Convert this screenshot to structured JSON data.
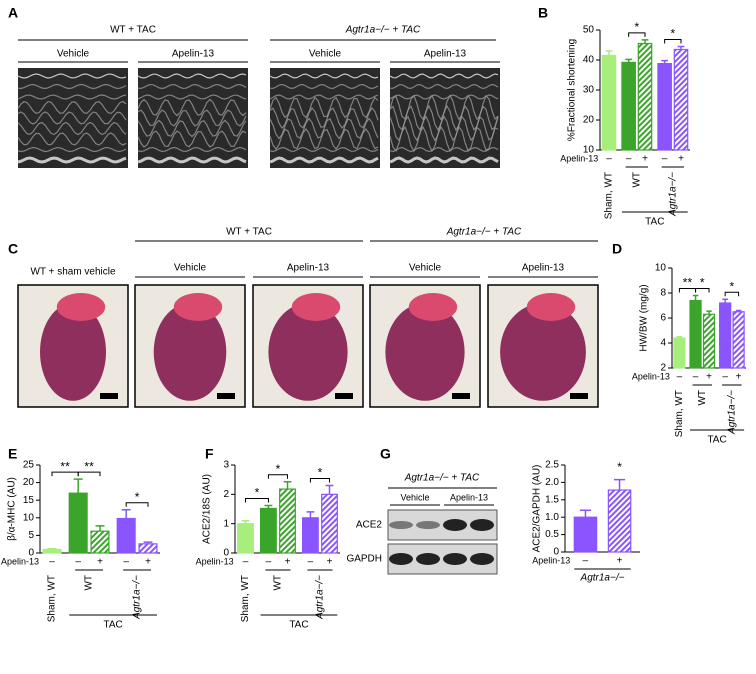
{
  "panels": {
    "A": {
      "label": "A",
      "groups": [
        {
          "title": "WT + TAC",
          "items": [
            "Vehicle",
            "Apelin-13"
          ]
        },
        {
          "title": "Agtr1a−/− + TAC",
          "items": [
            "Vehicle",
            "Apelin-13"
          ]
        }
      ]
    },
    "C": {
      "label": "C",
      "single": "WT + sham vehicle",
      "groups": [
        {
          "title": "WT + TAC",
          "items": [
            "Vehicle",
            "Apelin-13"
          ]
        },
        {
          "title": "Agtr1a−/− + TAC",
          "items": [
            "Vehicle",
            "Apelin-13"
          ]
        }
      ]
    },
    "G": {
      "label": "G",
      "title": "Agtr1a−/− + TAC",
      "items": [
        "Vehicle",
        "Apelin-13"
      ],
      "rows": [
        "ACE2",
        "GAPDH"
      ]
    }
  },
  "chart_data": [
    {
      "type": "bar",
      "label": "B",
      "y_label": "%Fractional shortening",
      "values": [
        41.5,
        39.2,
        45.5,
        38.8,
        43.5
      ],
      "errors": [
        1.5,
        1,
        1.2,
        1,
        1
      ],
      "colors": [
        "#a8ee7c",
        "#3aa52a",
        "#3aa52a",
        "#8a55ff",
        "#8a55ff"
      ],
      "hatched": [
        false,
        false,
        true,
        false,
        true
      ],
      "treatment_label": "Apelin-13",
      "treatment": [
        "–",
        "–",
        "+",
        "–",
        "+"
      ],
      "groups": [
        "Sham, WT",
        "WT",
        "Agtr1a−/−"
      ],
      "super_group": "TAC",
      "significance": [
        "*",
        "*"
      ],
      "ylim": [
        10,
        50
      ],
      "yticks": [
        10,
        20,
        30,
        40,
        50
      ]
    },
    {
      "type": "bar",
      "label": "D",
      "y_label": "HW/BW (mg/g)",
      "values": [
        4.4,
        7.4,
        6.3,
        7.2,
        6.5
      ],
      "errors": [
        0.1,
        0.4,
        0.25,
        0.3,
        0.1
      ],
      "colors": [
        "#a8ee7c",
        "#3aa52a",
        "#3aa52a",
        "#8a55ff",
        "#8a55ff"
      ],
      "hatched": [
        false,
        false,
        true,
        false,
        true
      ],
      "treatment_label": "Apelin-13",
      "treatment": [
        "–",
        "–",
        "+",
        "–",
        "+"
      ],
      "groups": [
        "Sham, WT",
        "WT",
        "Agtr1a−/−"
      ],
      "super_group": "TAC",
      "significance": [
        "**",
        "*",
        "*"
      ],
      "ylim": [
        2,
        10
      ],
      "yticks": [
        2,
        4,
        6,
        8,
        10
      ]
    },
    {
      "type": "bar",
      "label": "E",
      "y_label": "β/α-MHC (AU)",
      "values": [
        1,
        17,
        6.2,
        9.8,
        2.6
      ],
      "errors": [
        0.2,
        4,
        1.5,
        2.5,
        0.5
      ],
      "colors": [
        "#a8ee7c",
        "#3aa52a",
        "#3aa52a",
        "#8a55ff",
        "#8a55ff"
      ],
      "hatched": [
        false,
        false,
        true,
        false,
        true
      ],
      "treatment_label": "Apelin-13",
      "treatment": [
        "–",
        "–",
        "+",
        "–",
        "+"
      ],
      "groups": [
        "Sham, WT",
        "WT",
        "Agtr1a−/−"
      ],
      "super_group": "TAC",
      "significance": [
        "**",
        "**",
        "*"
      ],
      "ylim": [
        0,
        25
      ],
      "yticks": [
        0,
        5,
        10,
        15,
        20,
        25
      ]
    },
    {
      "type": "bar",
      "label": "F",
      "y_label": "ACE2/18S (AU)",
      "values": [
        1.0,
        1.52,
        2.18,
        1.2,
        2.0
      ],
      "errors": [
        0.1,
        0.1,
        0.25,
        0.2,
        0.3
      ],
      "colors": [
        "#a8ee7c",
        "#3aa52a",
        "#3aa52a",
        "#8a55ff",
        "#8a55ff"
      ],
      "hatched": [
        false,
        false,
        true,
        false,
        true
      ],
      "treatment_label": "Apelin-13",
      "treatment": [
        "–",
        "–",
        "+",
        "–",
        "+"
      ],
      "groups": [
        "Sham, WT",
        "WT",
        "Agtr1a−/−"
      ],
      "super_group": "TAC",
      "significance": [
        "*",
        "*",
        "*"
      ],
      "ylim": [
        0,
        3
      ],
      "yticks": [
        0,
        1,
        2,
        3
      ]
    },
    {
      "type": "bar",
      "y_label": "ACE2/GAPDH (AU)",
      "values": [
        1.0,
        1.78
      ],
      "errors": [
        0.2,
        0.3
      ],
      "colors": [
        "#8a55ff",
        "#8a55ff"
      ],
      "hatched": [
        false,
        true
      ],
      "treatment_label": "Apelin-13",
      "treatment": [
        "–",
        "+"
      ],
      "groups": [
        "Agtr1a−/−"
      ],
      "significance": [
        "*"
      ],
      "ylim": [
        0,
        2.5
      ],
      "yticks": [
        0,
        {
          "value": 0.5,
          "label": "0.5"
        },
        {
          "value": 1,
          "label": "1.0"
        },
        {
          "value": 1.5,
          "label": "1.5"
        },
        {
          "value": 2,
          "label": "2.0"
        },
        {
          "value": 2.5,
          "label": "2.5"
        }
      ]
    }
  ]
}
